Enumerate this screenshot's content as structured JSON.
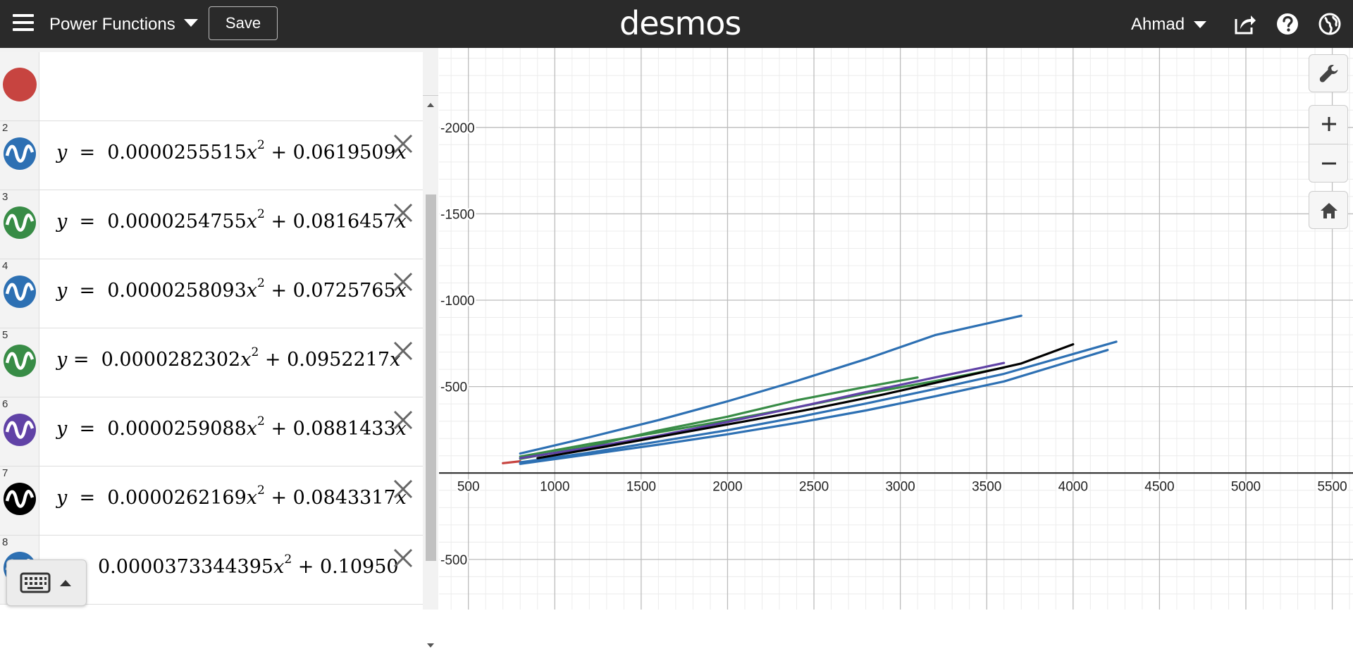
{
  "header": {
    "title": "Power Functions",
    "save_label": "Save",
    "brand": "desmos",
    "user": "Ahmad",
    "icons": [
      "menu-icon",
      "share-icon",
      "help-icon",
      "globe-icon"
    ]
  },
  "toolbar": {
    "icons": [
      "add-icon",
      "undo-icon",
      "redo-icon",
      "settings-icon",
      "collapse-icon"
    ]
  },
  "expressions": [
    {
      "num": "",
      "color": "#c74440",
      "partial": true
    },
    {
      "num": "2",
      "color": "#2d70b3",
      "lhs": "y",
      "eq": "=",
      "a": "0.0000255515",
      "b": "+ 0.0619509",
      "tail": "x"
    },
    {
      "num": "3",
      "color": "#388c46",
      "lhs": "y",
      "eq": "=",
      "a": "0.0000254755",
      "b": "+ 0.0816457",
      "tail": "x"
    },
    {
      "num": "4",
      "color": "#2d70b3",
      "lhs": "y",
      "eq": "=",
      "a": "0.0000258093",
      "b": "+ 0.0725765",
      "tail": "x"
    },
    {
      "num": "5",
      "color": "#388c46",
      "lhs": "y",
      "eq": "=",
      "a": "0.0000282302",
      "b": "+ 0.0952217",
      "tail": "x"
    },
    {
      "num": "6",
      "color": "#6042a6",
      "lhs": "y",
      "eq": "=",
      "a": "0.0000259088",
      "b": "+ 0.0881433",
      "tail": "x"
    },
    {
      "num": "7",
      "color": "#000000",
      "lhs": "y",
      "eq": "=",
      "a": "0.0000262169",
      "b": "+ 0.0843317",
      "tail": "x"
    },
    {
      "num": "8",
      "color": "#2d70b3",
      "lhs": "",
      "eq": "",
      "a": "0.0000373344395",
      "b": "+ 0.10950",
      "tail": ""
    }
  ],
  "graph": {
    "x_ticks": [
      "500",
      "1000",
      "1500",
      "2000",
      "2500",
      "3000",
      "3500",
      "4000",
      "4500",
      "5000",
      "5500"
    ],
    "y_ticks": [
      "-2000",
      "-1500",
      "-1000",
      "-500",
      "-500"
    ],
    "side_buttons": [
      "wrench-icon",
      "zoom-in-icon",
      "zoom-out-icon",
      "home-icon"
    ]
  },
  "chart_data": {
    "type": "line",
    "xlim": [
      330,
      5620
    ],
    "ylim": [
      -790,
      2460
    ],
    "grid": true,
    "series": [
      {
        "color": "#c74440",
        "x": [
          700,
          800
        ],
        "y": [
          57,
          68
        ]
      },
      {
        "color": "#2d70b3",
        "x": [
          800,
          1200,
          1600,
          2000,
          2400,
          2800,
          3200,
          3700
        ],
        "y": [
          113,
          207,
          306,
          415,
          533,
          659,
          798,
          910
        ]
      },
      {
        "color": "#388c46",
        "x": [
          800,
          1200,
          1600,
          2000,
          2400,
          2800,
          3100
        ],
        "y": [
          82,
          155,
          246,
          326,
          421,
          498,
          553
        ]
      },
      {
        "color": "#2d70b3",
        "x": [
          800,
          1200,
          1600,
          2000,
          2400,
          2800,
          3200,
          3600,
          4250
        ],
        "y": [
          62,
          118,
          182,
          248,
          322,
          402,
          486,
          574,
          760
        ]
      },
      {
        "color": "#388c46",
        "x": [
          800,
          1200,
          1600,
          2000,
          2400,
          2800,
          3200,
          3600
        ],
        "y": [
          95,
          168,
          235,
          305,
          380,
          460,
          532,
          610
        ]
      },
      {
        "color": "#6042a6",
        "x": [
          800,
          1200,
          1600,
          2000,
          2400,
          2800,
          3200,
          3600
        ],
        "y": [
          86,
          147,
          216,
          296,
          380,
          468,
          553,
          637
        ]
      },
      {
        "color": "#000000",
        "x": [
          900,
          1300,
          1700,
          2100,
          2500,
          2900,
          3300,
          3700,
          4000
        ],
        "y": [
          86,
          154,
          227,
          299,
          373,
          454,
          544,
          634,
          745
        ]
      },
      {
        "color": "#2d70b3",
        "x": [
          800,
          1200,
          1600,
          2000,
          2400,
          2800,
          3200,
          3600,
          4200
        ],
        "y": [
          53,
          108,
          164,
          224,
          290,
          362,
          444,
          530,
          712
        ]
      }
    ]
  }
}
